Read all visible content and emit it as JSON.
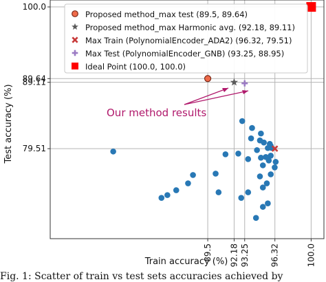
{
  "chart_data": {
    "type": "scatter",
    "xlabel": "Train accuracy (%)",
    "ylabel": "Test accuracy (%)",
    "xlim": [
      73.5,
      101.3
    ],
    "ylim": [
      66.5,
      101.0
    ],
    "x_ticks": [
      "89.5",
      "92.18",
      "93.25",
      "96.32",
      "100.0"
    ],
    "x_tick_values": [
      89.5,
      92.18,
      93.25,
      96.32,
      100.0
    ],
    "y_ticks": [
      "100.0",
      "89.64",
      "89.11",
      "79.51"
    ],
    "y_tick_values": [
      100.0,
      89.64,
      89.11,
      79.51
    ],
    "grid": "reference lines at tick values",
    "legend_position": "top",
    "legend": [
      {
        "label": "Proposed method_max test",
        "values": "(89.5, 89.64)",
        "marker": "circle",
        "color": "#ef6b4a"
      },
      {
        "label": "Proposed method_max Harmonic avg.",
        "values": "(92.18, 89.11)",
        "marker": "star",
        "color": "#5a5a5a"
      },
      {
        "label": "Max Train (PolynomialEncoder_ADA2)",
        "values": "(96.32, 79.51)",
        "marker": "x",
        "color": "#c83a3a"
      },
      {
        "label": "Max Test (PolynomialEncoder_GNB)",
        "values": "(93.25, 88.95)",
        "marker": "plus",
        "color": "#9b7bc4"
      },
      {
        "label": "Ideal Point",
        "values": "(100.0, 100.0)",
        "marker": "square",
        "color": "#ff0000"
      }
    ],
    "highlight_points": [
      {
        "x": 89.5,
        "y": 89.64,
        "marker": "circle",
        "color": "#ef6b4a"
      },
      {
        "x": 92.18,
        "y": 89.11,
        "marker": "star",
        "color": "#5a5a5a"
      },
      {
        "x": 96.32,
        "y": 79.51,
        "marker": "x",
        "color": "#c83a3a"
      },
      {
        "x": 93.25,
        "y": 88.95,
        "marker": "plus",
        "color": "#9b7bc4"
      },
      {
        "x": 100.0,
        "y": 100.0,
        "marker": "square",
        "color": "#ff0000"
      }
    ],
    "annotation": {
      "text": "Our method results",
      "color": "#b0186b"
    },
    "series": [
      {
        "color": "#2878b5",
        "points": [
          [
            79.9,
            79.1
          ],
          [
            93.0,
            83.5
          ],
          [
            94.0,
            82.5
          ],
          [
            94.9,
            81.7
          ],
          [
            93.9,
            81.0
          ],
          [
            95.2,
            80.4
          ],
          [
            95.8,
            80.2
          ],
          [
            94.8,
            80.7
          ],
          [
            95.9,
            79.9
          ],
          [
            96.0,
            79.6
          ],
          [
            95.6,
            79.6
          ],
          [
            94.5,
            79.3
          ],
          [
            94.9,
            78.2
          ],
          [
            95.4,
            78.3
          ],
          [
            95.9,
            78.5
          ],
          [
            93.6,
            78.0
          ],
          [
            92.6,
            78.8
          ],
          [
            91.3,
            78.7
          ],
          [
            95.7,
            77.8
          ],
          [
            96.4,
            77.6
          ],
          [
            96.3,
            76.8
          ],
          [
            95.1,
            77.1
          ],
          [
            94.8,
            75.5
          ],
          [
            95.9,
            75.8
          ],
          [
            95.5,
            74.5
          ],
          [
            95.1,
            73.9
          ],
          [
            93.6,
            73.2
          ],
          [
            92.9,
            72.4
          ],
          [
            90.3,
            75.9
          ],
          [
            88.0,
            75.7
          ],
          [
            87.5,
            74.5
          ],
          [
            86.3,
            73.5
          ],
          [
            84.8,
            72.4
          ],
          [
            85.4,
            72.8
          ],
          [
            90.6,
            73.2
          ],
          [
            95.6,
            71.6
          ],
          [
            95.1,
            71.1
          ],
          [
            94.4,
            69.5
          ]
        ]
      }
    ]
  },
  "caption": "Fig. 1: Scatter of train vs test sets accuracies achieved by"
}
